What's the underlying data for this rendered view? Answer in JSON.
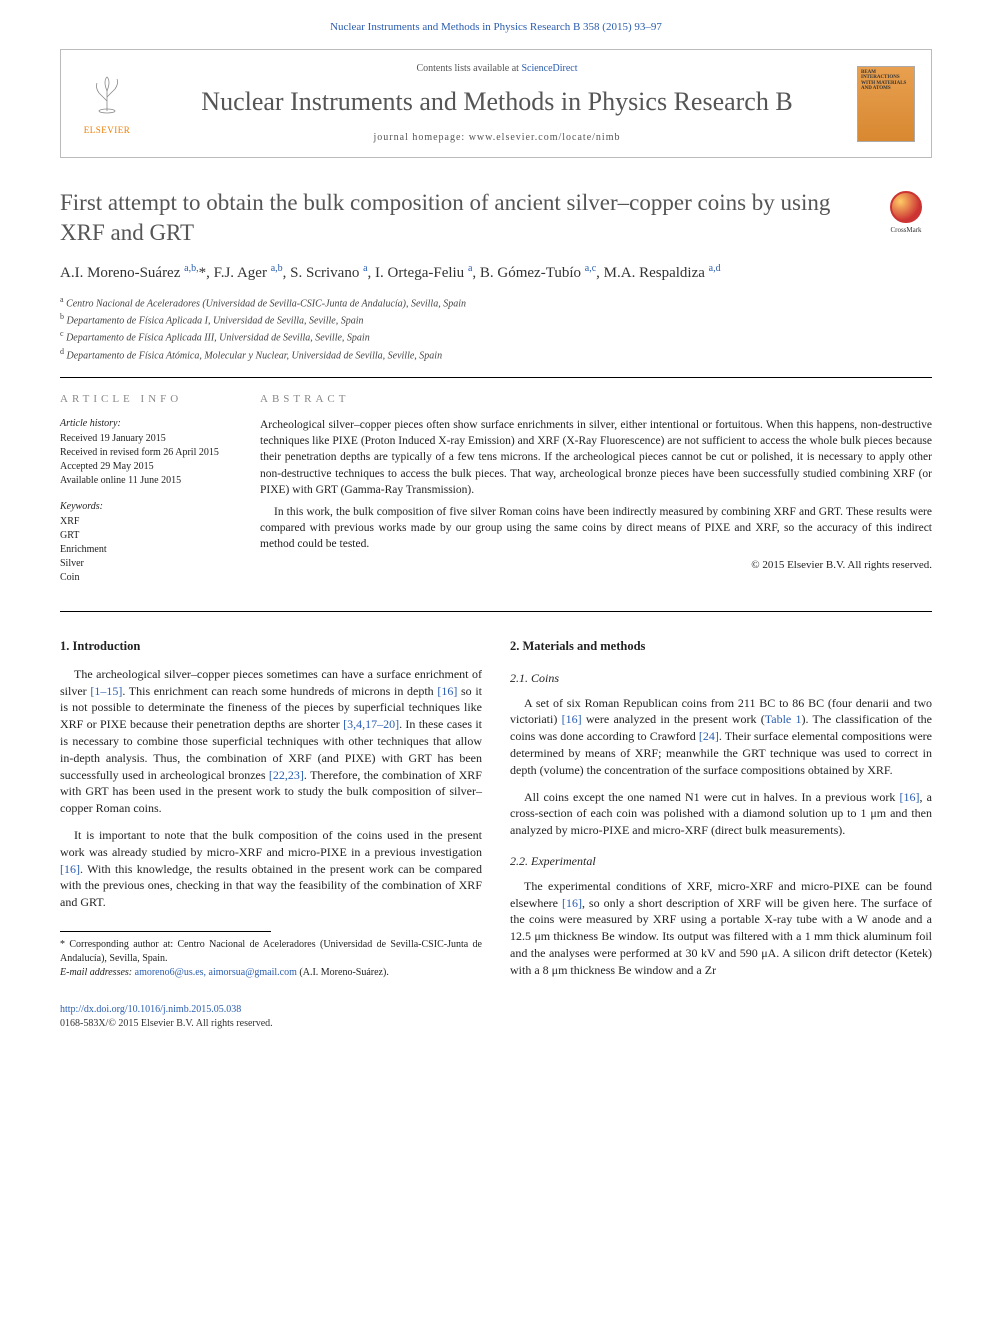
{
  "journal_ref": "Nuclear Instruments and Methods in Physics Research B 358 (2015) 93–97",
  "header": {
    "contents_prefix": "Contents lists available at ",
    "contents_link": "ScienceDirect",
    "journal_name": "Nuclear Instruments and Methods in Physics Research B",
    "homepage_label": "journal homepage: www.elsevier.com/locate/nimb",
    "publisher": "ELSEVIER",
    "cover_text": "BEAM INTERACTIONS WITH MATERIALS AND ATOMS"
  },
  "crossmark_label": "CrossMark",
  "title": "First attempt to obtain the bulk composition of ancient silver–copper coins by using XRF and GRT",
  "authors_html": "A.I. Moreno-Suárez <sup>a,b,</sup><span class='star'>*</span>, F.J. Ager <sup>a,b</sup>, S. Scrivano <sup>a</sup>, I. Ortega-Feliu <sup>a</sup>, B. Gómez-Tubío <sup>a,c</sup>, M.A. Respaldiza <sup>a,d</sup>",
  "affiliations": [
    {
      "sup": "a",
      "text": "Centro Nacional de Aceleradores (Universidad de Sevilla-CSIC-Junta de Andalucía), Sevilla, Spain"
    },
    {
      "sup": "b",
      "text": "Departamento de Física Aplicada I, Universidad de Sevilla, Seville, Spain"
    },
    {
      "sup": "c",
      "text": "Departamento de Física Aplicada III, Universidad de Sevilla, Seville, Spain"
    },
    {
      "sup": "d",
      "text": "Departamento de Física Atómica, Molecular y Nuclear, Universidad de Sevilla, Seville, Spain"
    }
  ],
  "article_info": {
    "heading": "ARTICLE INFO",
    "history_label": "Article history:",
    "history": [
      "Received 19 January 2015",
      "Received in revised form 26 April 2015",
      "Accepted 29 May 2015",
      "Available online 11 June 2015"
    ],
    "keywords_label": "Keywords:",
    "keywords": [
      "XRF",
      "GRT",
      "Enrichment",
      "Silver",
      "Coin"
    ]
  },
  "abstract": {
    "heading": "ABSTRACT",
    "paragraphs": [
      "Archeological silver–copper pieces often show surface enrichments in silver, either intentional or fortuitous. When this happens, non-destructive techniques like PIXE (Proton Induced X-ray Emission) and XRF (X-Ray Fluorescence) are not sufficient to access the whole bulk pieces because their penetration depths are typically of a few tens microns. If the archeological pieces cannot be cut or polished, it is necessary to apply other non-destructive techniques to access the bulk pieces. That way, archeological bronze pieces have been successfully studied combining XRF (or PIXE) with GRT (Gamma-Ray Transmission).",
      "In this work, the bulk composition of five silver Roman coins have been indirectly measured by combining XRF and GRT. These results were compared with previous works made by our group using the same coins by direct means of PIXE and XRF, so the accuracy of this indirect method could be tested."
    ],
    "copyright": "© 2015 Elsevier B.V. All rights reserved."
  },
  "body": {
    "left": {
      "sec_num": "1.",
      "sec_title": "Introduction",
      "paragraphs": [
        "The archeological silver–copper pieces sometimes can have a surface enrichment of silver <a class='ref' href='#'>[1–15]</a>. This enrichment can reach some hundreds of microns in depth <a class='ref' href='#'>[16]</a> so it is not possible to determinate the fineness of the pieces by superficial techniques like XRF or PIXE because their penetration depths are shorter <a class='ref' href='#'>[3,4,17–20]</a>. In these cases it is necessary to combine those superficial techniques with other techniques that allow in-depth analysis. Thus, the combination of XRF (and PIXE) with GRT has been successfully used in archeological bronzes <a class='ref' href='#'>[22,23]</a>. Therefore, the combination of XRF with GRT has been used in the present work to study the bulk composition of silver–copper Roman coins.",
        "It is important to note that the bulk composition of the coins used in the present work was already studied by micro-XRF and micro-PIXE in a previous investigation <a class='ref' href='#'>[16]</a>. With this knowledge, the results obtained in the present work can be compared with the previous ones, checking in that way the feasibility of the combination of XRF and GRT."
      ]
    },
    "right": {
      "sec_num": "2.",
      "sec_title": "Materials and methods",
      "subsections": [
        {
          "num": "2.1.",
          "title": "Coins",
          "paragraphs": [
            "A set of six Roman Republican coins from 211 BC to 86 BC (four denarii and two victoriati) <a class='ref' href='#'>[16]</a> were analyzed in the present work (<a class='ref' href='#'>Table 1</a>). The classification of the coins was done according to Crawford <a class='ref' href='#'>[24]</a>. Their surface elemental compositions were determined by means of XRF; meanwhile the GRT technique was used to correct in depth (volume) the concentration of the surface compositions obtained by XRF.",
            "All coins except the one named N1 were cut in halves. In a previous work <a class='ref' href='#'>[16]</a>, a cross-section of each coin was polished with a diamond solution up to 1 μm and then analyzed by micro-PIXE and micro-XRF (direct bulk measurements)."
          ]
        },
        {
          "num": "2.2.",
          "title": "Experimental",
          "paragraphs": [
            "The experimental conditions of XRF, micro-XRF and micro-PIXE can be found elsewhere <a class='ref' href='#'>[16]</a>, so only a short description of XRF will be given here. The surface of the coins were measured by XRF using a portable X-ray tube with a W anode and a 12.5 μm thickness Be window. Its output was filtered with a 1 mm thick aluminum foil and the analyses were performed at 30 kV and 590 μA. A silicon drift detector (Ketek) with a 8 μm thickness Be window and a Zr"
          ]
        }
      ]
    }
  },
  "footnote": {
    "corr_label": "* Corresponding author at: Centro Nacional de Aceleradores (Universidad de Sevilla-CSIC-Junta de Andalucía), Sevilla, Spain.",
    "email_label": "E-mail addresses:",
    "emails": "amoreno6@us.es, aimorsua@gmail.com",
    "email_author": "(A.I. Moreno-Suárez)."
  },
  "footer": {
    "doi": "http://dx.doi.org/10.1016/j.nimb.2015.05.038",
    "issn_line": "0168-583X/© 2015 Elsevier B.V. All rights reserved."
  },
  "colors": {
    "link": "#2a5db0",
    "heading_gray": "#888888",
    "title_gray": "#555555",
    "elsevier_orange": "#ee7d00"
  }
}
